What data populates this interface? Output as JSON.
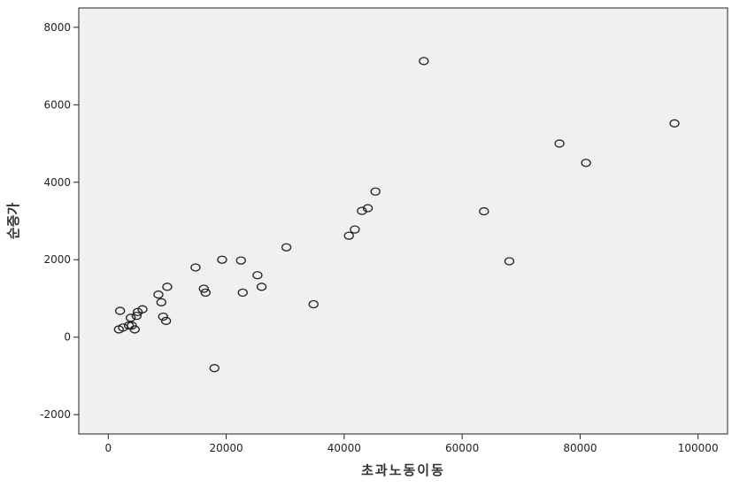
{
  "chart_data": {
    "type": "scatter",
    "title": "",
    "xlabel": "초과노동이동",
    "ylabel": "순증가",
    "xlim": [
      -5000,
      105000
    ],
    "ylim": [
      -2500,
      8500
    ],
    "x_ticks": [
      0,
      20000,
      40000,
      60000,
      80000,
      100000
    ],
    "y_ticks": [
      -2000,
      0,
      2000,
      4000,
      6000,
      8000
    ],
    "grid": false,
    "legend": "none",
    "colors": {
      "plot_background": "#f0f0f0",
      "marker_stroke": "#222222",
      "axis": "#222222"
    },
    "points": [
      {
        "x": 1800,
        "y": 200
      },
      {
        "x": 2000,
        "y": 680
      },
      {
        "x": 2500,
        "y": 250
      },
      {
        "x": 3500,
        "y": 300
      },
      {
        "x": 3800,
        "y": 500
      },
      {
        "x": 4000,
        "y": 300
      },
      {
        "x": 4500,
        "y": 200
      },
      {
        "x": 4800,
        "y": 550
      },
      {
        "x": 5000,
        "y": 650
      },
      {
        "x": 5800,
        "y": 720
      },
      {
        "x": 8500,
        "y": 1100
      },
      {
        "x": 9000,
        "y": 900
      },
      {
        "x": 9300,
        "y": 530
      },
      {
        "x": 9800,
        "y": 420
      },
      {
        "x": 10000,
        "y": 1300
      },
      {
        "x": 14800,
        "y": 1800
      },
      {
        "x": 16200,
        "y": 1250
      },
      {
        "x": 16500,
        "y": 1150
      },
      {
        "x": 18000,
        "y": -800
      },
      {
        "x": 19300,
        "y": 2000
      },
      {
        "x": 22500,
        "y": 1980
      },
      {
        "x": 22800,
        "y": 1150
      },
      {
        "x": 25300,
        "y": 1600
      },
      {
        "x": 26000,
        "y": 1300
      },
      {
        "x": 30200,
        "y": 2320
      },
      {
        "x": 34800,
        "y": 850
      },
      {
        "x": 40800,
        "y": 2620
      },
      {
        "x": 41800,
        "y": 2780
      },
      {
        "x": 43000,
        "y": 3260
      },
      {
        "x": 44000,
        "y": 3330
      },
      {
        "x": 45300,
        "y": 3760
      },
      {
        "x": 53500,
        "y": 7130
      },
      {
        "x": 63700,
        "y": 3250
      },
      {
        "x": 68000,
        "y": 1960
      },
      {
        "x": 76500,
        "y": 5000
      },
      {
        "x": 81000,
        "y": 4500
      },
      {
        "x": 96000,
        "y": 5520
      }
    ]
  }
}
